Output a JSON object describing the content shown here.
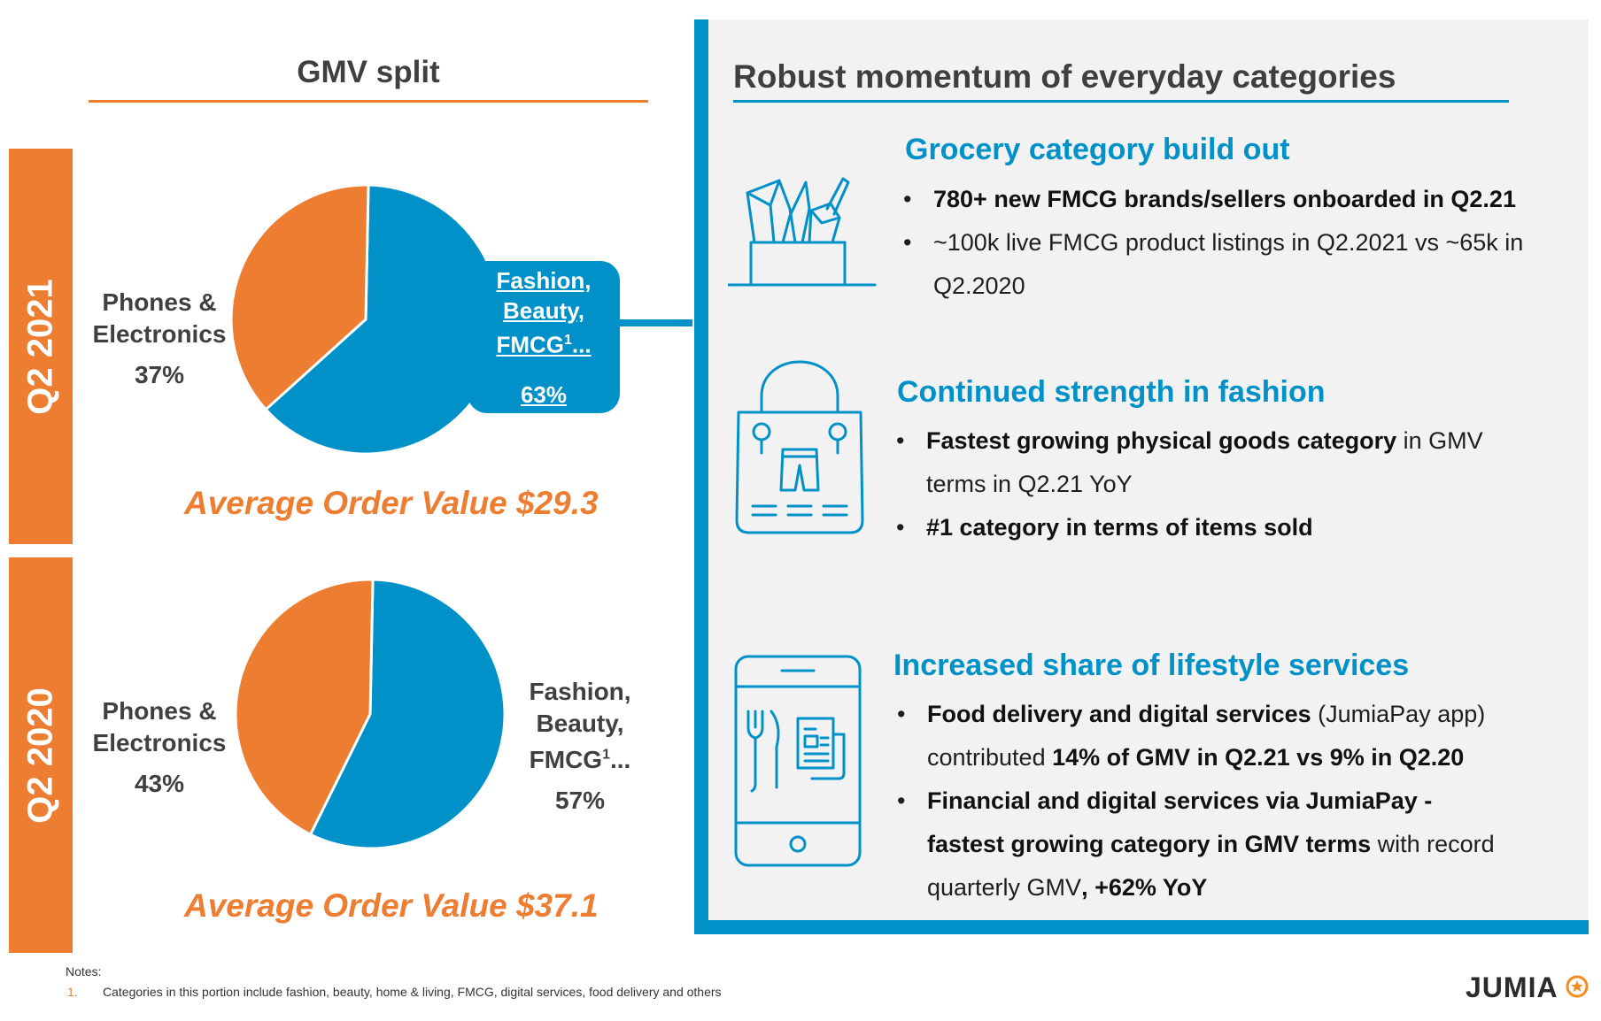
{
  "left_title": "GMV split",
  "chart_data": [
    {
      "type": "pie",
      "title": "Q2 2021",
      "slices": [
        {
          "label": "Phones & Electronics",
          "value": 37,
          "display": "37%",
          "color": "#ed7d31"
        },
        {
          "label": "Fashion, Beauty, FMCG¹...",
          "value": 63,
          "display": "63%",
          "color": "#0091c9"
        }
      ],
      "annotation": "Average Order Value $29.3"
    },
    {
      "type": "pie",
      "title": "Q2 2020",
      "slices": [
        {
          "label": "Phones & Electronics",
          "value": 43,
          "display": "43%",
          "color": "#ed7d31"
        },
        {
          "label": "Fashion, Beauty, FMCG¹...",
          "value": 57,
          "display": "57%",
          "color": "#0091c9"
        }
      ],
      "annotation": "Average Order Value $37.1"
    }
  ],
  "labels": {
    "phones_line1": "Phones &",
    "phones_line2": "Electronics",
    "fashion_line1": "Fashion,",
    "fashion_line2": "Beauty,",
    "fashion_line3": "FMCG",
    "fashion_sup": "1",
    "fashion_tail": "..."
  },
  "panel": {
    "title": "Robust momentum of everyday categories",
    "sections": [
      {
        "icon": "grocery-bag-icon",
        "heading": "Grocery category build out",
        "b1_bold": "780+ new FMCG brands/sellers onboarded in Q2.21",
        "b2_line1": "~100k live FMCG product listings in Q2.2021 vs ~65k in",
        "b2_line2": "Q2.2020"
      },
      {
        "icon": "shopping-bag-icon",
        "heading": "Continued strength in fashion",
        "b1_bold": "Fastest growing physical goods category",
        "b1_rest": " in GMV",
        "b1_line2": "terms in Q2.21 YoY",
        "b2_bold": "#1 category in terms of items sold"
      },
      {
        "icon": "phone-food-icon",
        "heading": "Increased share of lifestyle services",
        "b1_bold": "Food delivery and digital services",
        "b1_rest": " (JumiaPay app)",
        "b1_l2_pre": "contributed ",
        "b1_l2_bold": "14% of GMV in Q2.21 vs 9% in Q2.20",
        "b2_bold1": "Financial and digital services via JumiaPay -",
        "b2_bold2": "fastest growing category in GMV terms",
        "b2_rest2": " with record",
        "b2_l3_pre": "quarterly GMV",
        "b2_l3_bold": ", +62% YoY"
      }
    ]
  },
  "notes": {
    "label": "Notes:",
    "num": "1.",
    "text": "Categories in this portion include fashion, beauty, home & living, FMCG, digital services, food delivery and others"
  },
  "logo": "JUMIA"
}
